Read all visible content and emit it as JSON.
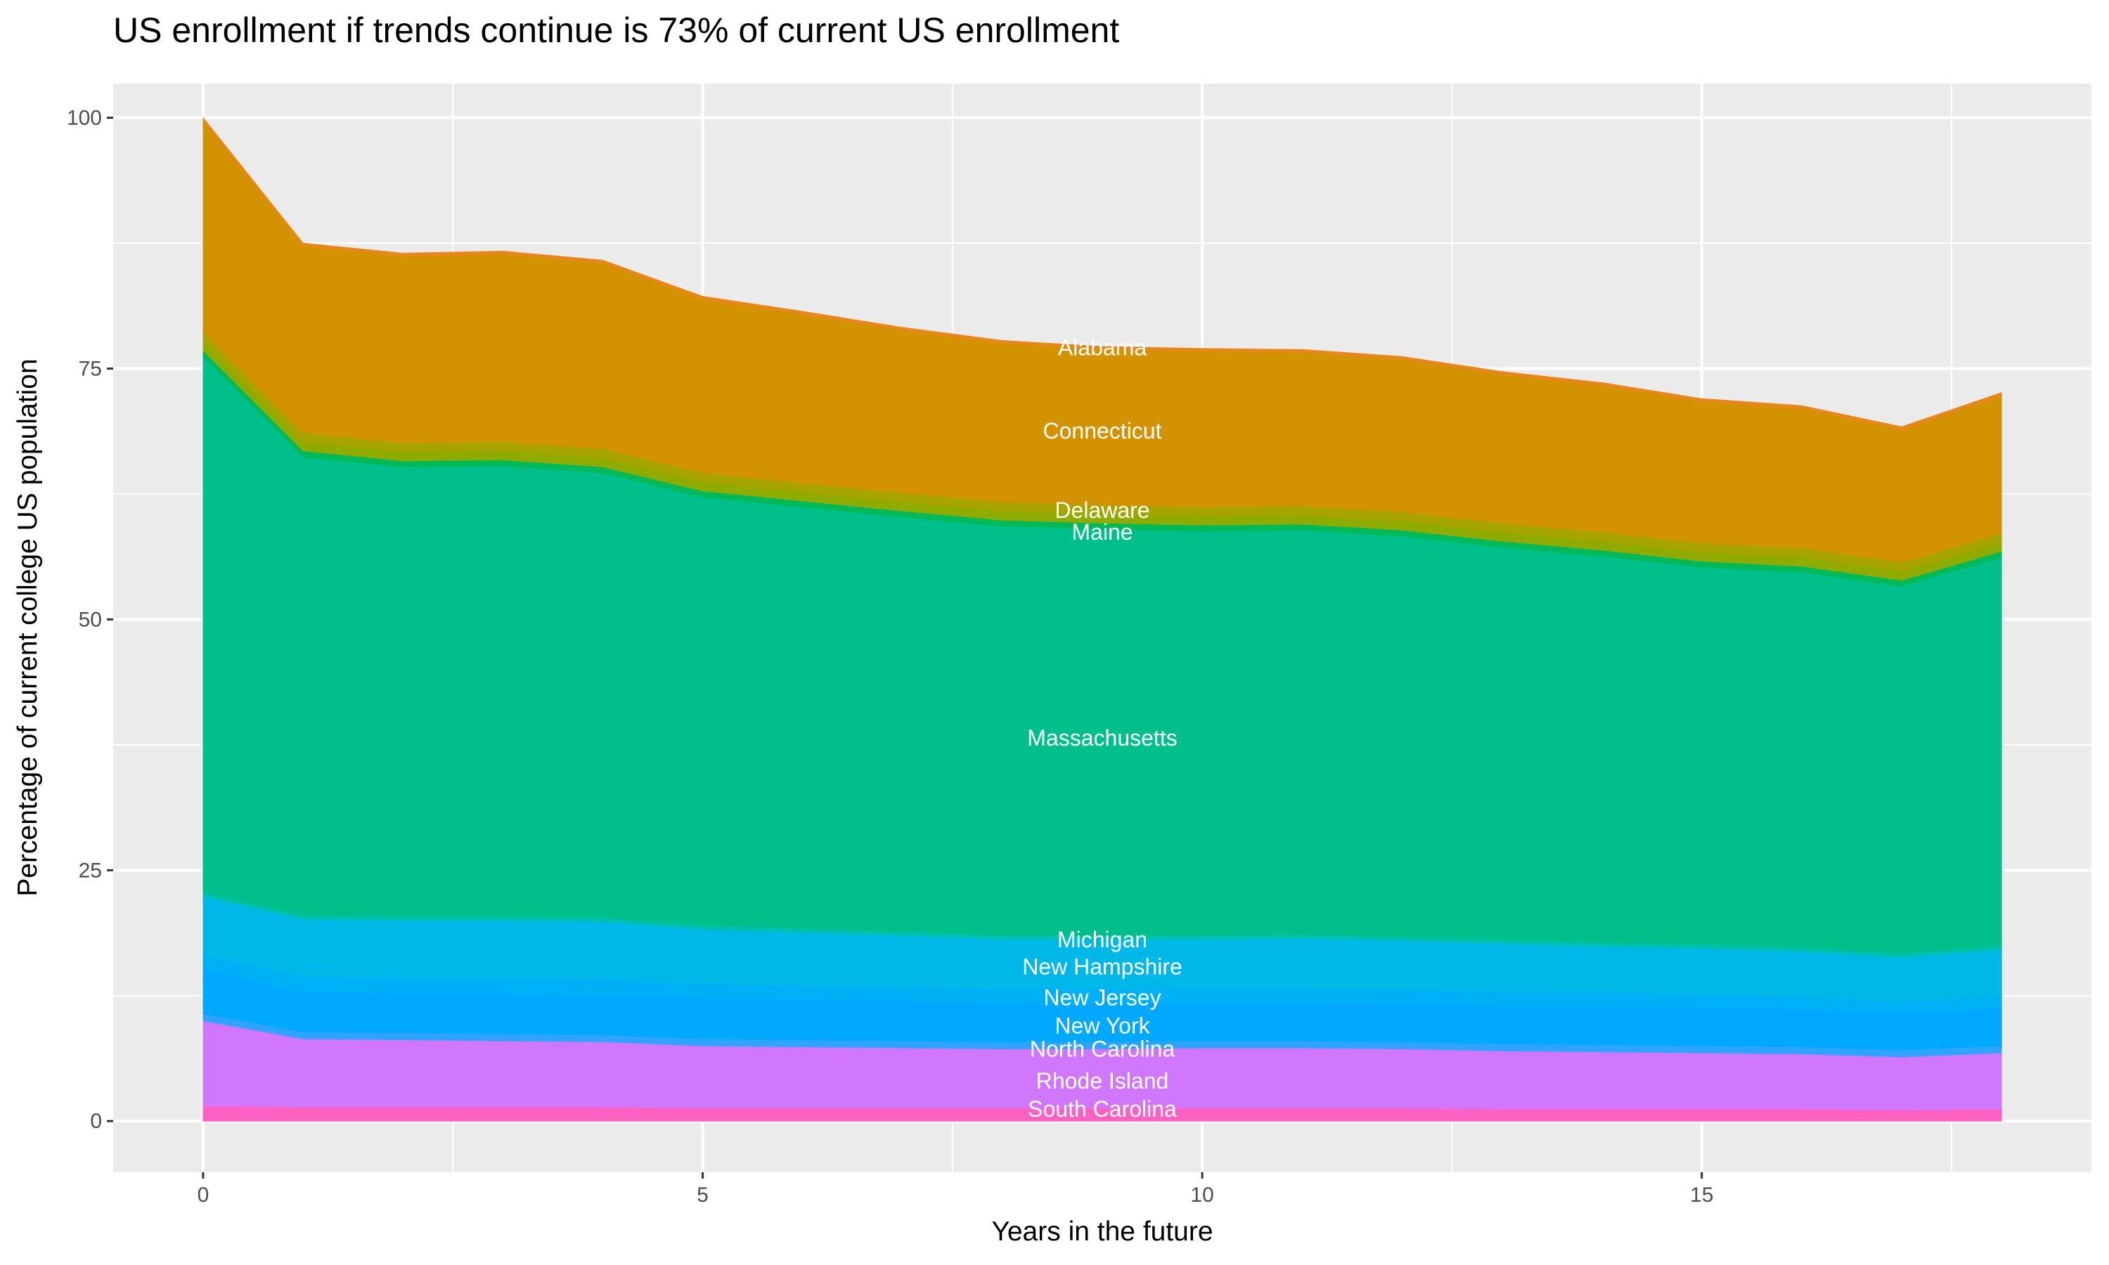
{
  "chart_data": {
    "type": "area",
    "stacked": true,
    "title": "US enrollment if trends continue is 73% of current US enrollment",
    "xlabel": "Years in the future",
    "ylabel": "Percentage of current college US population",
    "xlim": [
      -0.9,
      18.9
    ],
    "ylim": [
      -5.1,
      103.4
    ],
    "xticks": [
      0,
      5,
      10,
      15
    ],
    "yticks": [
      0,
      25,
      50,
      75,
      100
    ],
    "grid": true,
    "legend": "none",
    "x": [
      0,
      1,
      2,
      3,
      4,
      5,
      6,
      7,
      8,
      9,
      10,
      11,
      12,
      13,
      14,
      15,
      16,
      17,
      18
    ],
    "series": [
      {
        "name": "South Carolina",
        "color": "#ff61c3",
        "values": [
          1.5,
          1.4,
          1.4,
          1.4,
          1.4,
          1.3,
          1.3,
          1.3,
          1.3,
          1.3,
          1.3,
          1.3,
          1.3,
          1.2,
          1.2,
          1.2,
          1.2,
          1.1,
          1.2
        ]
      },
      {
        "name": "Rhode Island",
        "color": "#d177fd",
        "values": [
          8.5,
          6.8,
          6.7,
          6.6,
          6.5,
          6.2,
          6.1,
          6.0,
          5.9,
          5.9,
          6.0,
          6.0,
          5.9,
          5.8,
          5.7,
          5.6,
          5.5,
          5.3,
          5.6
        ]
      },
      {
        "name": "North Carolina",
        "color": "#2fa4ff",
        "values": [
          0.7,
          0.7,
          0.7,
          0.7,
          0.7,
          0.7,
          0.7,
          0.7,
          0.7,
          0.7,
          0.7,
          0.7,
          0.7,
          0.7,
          0.7,
          0.7,
          0.7,
          0.7,
          0.7
        ]
      },
      {
        "name": "New York",
        "color": "#00a8ff",
        "values": [
          4.5,
          3.9,
          3.9,
          4.0,
          4.0,
          4.1,
          4.0,
          3.9,
          3.9,
          3.9,
          3.8,
          3.8,
          3.8,
          3.8,
          3.8,
          3.8,
          3.7,
          3.7,
          3.7
        ]
      },
      {
        "name": "New Jersey",
        "color": "#00b0f6",
        "values": [
          1.4,
          1.6,
          1.6,
          1.6,
          1.6,
          1.4,
          1.4,
          1.4,
          1.4,
          1.4,
          1.4,
          1.4,
          1.4,
          1.4,
          1.4,
          1.3,
          1.3,
          1.1,
          1.2
        ]
      },
      {
        "name": "New Hampshire",
        "color": "#00b8e7",
        "values": [
          5.8,
          5.7,
          5.7,
          5.7,
          5.7,
          5.4,
          5.3,
          5.2,
          4.9,
          4.9,
          4.9,
          5.0,
          4.9,
          4.8,
          4.6,
          4.6,
          4.5,
          4.4,
          4.7
        ]
      },
      {
        "name": "Michigan",
        "color": "#00c0b0",
        "values": [
          0.4,
          0.4,
          0.4,
          0.4,
          0.4,
          0.4,
          0.4,
          0.4,
          0.4,
          0.4,
          0.4,
          0.4,
          0.4,
          0.4,
          0.4,
          0.4,
          0.4,
          0.4,
          0.4
        ]
      },
      {
        "name": "Massachusetts",
        "color": "#00bf8b",
        "values": [
          53.4,
          45.7,
          44.8,
          44.9,
          44.3,
          42.7,
          42.0,
          41.3,
          40.8,
          40.5,
          40.3,
          40.3,
          39.9,
          39.1,
          38.5,
          37.6,
          37.4,
          36.6,
          38.7
        ]
      },
      {
        "name": "Maine",
        "color": "#00ba5a",
        "values": [
          0.6,
          0.6,
          0.6,
          0.6,
          0.6,
          0.6,
          0.6,
          0.6,
          0.6,
          0.6,
          0.6,
          0.6,
          0.6,
          0.6,
          0.6,
          0.6,
          0.6,
          0.6,
          0.6
        ]
      },
      {
        "name": "Delaware",
        "color": "#8fab00",
        "values": [
          0.9,
          0.9,
          0.9,
          0.9,
          0.9,
          0.9,
          0.9,
          0.9,
          0.9,
          0.9,
          0.9,
          0.9,
          0.9,
          0.9,
          0.9,
          0.9,
          0.9,
          0.9,
          0.9
        ]
      },
      {
        "name": "Connecticut",
        "color": "#a7a300",
        "values": [
          0.9,
          0.9,
          0.9,
          0.9,
          0.9,
          0.9,
          0.9,
          0.9,
          0.9,
          0.9,
          0.9,
          0.9,
          0.9,
          0.9,
          0.9,
          0.9,
          0.9,
          0.9,
          0.9
        ]
      },
      {
        "name": "Alabama",
        "color": "#d39200",
        "values": [
          21.1,
          18.6,
          18.6,
          18.7,
          18.5,
          17.3,
          16.8,
          16.2,
          15.8,
          15.5,
          15.5,
          15.3,
          15.2,
          14.8,
          14.6,
          14.1,
          13.9,
          13.2,
          13.7
        ]
      },
      {
        "color": "#e7861b",
        "values": [
          0.3,
          0.3,
          0.3,
          0.3,
          0.3,
          0.3,
          0.3,
          0.3,
          0.3,
          0.3,
          0.3,
          0.3,
          0.3,
          0.3,
          0.3,
          0.3,
          0.3,
          0.3,
          0.3
        ]
      }
    ],
    "annotations": [
      {
        "text": "Alabama",
        "x": 9,
        "y": 77.1
      },
      {
        "text": "Connecticut",
        "x": 9,
        "y": 68.8
      },
      {
        "text": "Delaware",
        "x": 9,
        "y": 60.9
      },
      {
        "text": "Maine",
        "x": 9,
        "y": 58.7
      },
      {
        "text": "Massachusetts",
        "x": 9,
        "y": 38.2
      },
      {
        "text": "Michigan",
        "x": 9,
        "y": 18.1
      },
      {
        "text": "New Hampshire",
        "x": 9,
        "y": 15.4
      },
      {
        "text": "New Jersey",
        "x": 9,
        "y": 12.3
      },
      {
        "text": "New York",
        "x": 9,
        "y": 9.5
      },
      {
        "text": "North Carolina",
        "x": 9,
        "y": 7.2
      },
      {
        "text": "Rhode Island",
        "x": 9,
        "y": 4.0
      },
      {
        "text": "South Carolina",
        "x": 9,
        "y": 1.2
      }
    ],
    "panel_background": "#ebebeb",
    "grid_color": "#ffffff"
  }
}
